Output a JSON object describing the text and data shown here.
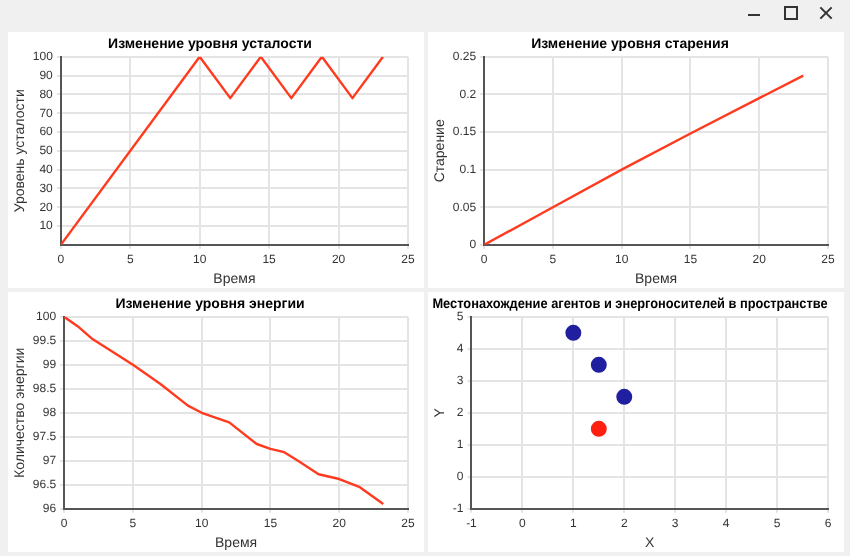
{
  "chart_data": [
    {
      "type": "line",
      "title": "Изменение уровня усталости",
      "xlabel": "Время",
      "ylabel": "Уровень усталости",
      "xlim": [
        0,
        25
      ],
      "xticks": [
        0,
        5,
        10,
        15,
        20,
        25
      ],
      "ylim": [
        0,
        100
      ],
      "yticks": [
        10,
        20,
        30,
        40,
        50,
        60,
        70,
        80,
        90,
        100
      ],
      "grid": true,
      "legend": false,
      "marker": "none",
      "series": [
        {
          "color": "#ff3b1f",
          "x": [
            0,
            10,
            12.2,
            14.4,
            16.6,
            18.8,
            21,
            23.2
          ],
          "values": [
            0,
            100,
            78,
            100,
            78,
            100,
            78,
            100
          ]
        }
      ]
    },
    {
      "type": "line",
      "title": "Изменение уровня старения",
      "xlabel": "Время",
      "ylabel": "Старение",
      "xlim": [
        0,
        25
      ],
      "xticks": [
        0,
        5,
        10,
        15,
        20,
        25
      ],
      "ylim": [
        0,
        0.25
      ],
      "yticks": [
        0,
        0.05,
        0.1,
        0.15,
        0.2,
        0.25
      ],
      "grid": true,
      "legend": false,
      "marker": "none",
      "series": [
        {
          "color": "#ff3b1f",
          "x": [
            0,
            5,
            10,
            15,
            20,
            23.2
          ],
          "values": [
            0,
            0.05,
            0.1,
            0.148,
            0.195,
            0.225
          ]
        }
      ]
    },
    {
      "type": "line",
      "title": "Изменение уровня энергии",
      "xlabel": "Время",
      "ylabel": "Количество энергии",
      "xlim": [
        0,
        25
      ],
      "xticks": [
        0,
        5,
        10,
        15,
        20,
        25
      ],
      "ylim": [
        96,
        100
      ],
      "yticks": [
        96,
        96.5,
        97,
        97.5,
        98,
        98.5,
        99,
        99.5,
        100
      ],
      "grid": true,
      "legend": false,
      "marker": "none",
      "series": [
        {
          "color": "#ff3b1f",
          "x": [
            0,
            1,
            2,
            5,
            7,
            9,
            10,
            12,
            14,
            15,
            16,
            17,
            18.5,
            20,
            21.5,
            23.2
          ],
          "values": [
            100,
            99.8,
            99.55,
            99.0,
            98.6,
            98.15,
            98.0,
            97.8,
            97.35,
            97.25,
            97.18,
            97.0,
            96.72,
            96.62,
            96.45,
            96.1
          ]
        }
      ]
    },
    {
      "type": "scatter",
      "title": "Местонахождение агентов и энергоносителей в пространстве",
      "xlabel": "X",
      "ylabel": "Y",
      "xlim": [
        -1,
        6
      ],
      "xticks": [
        -1,
        0,
        1,
        2,
        3,
        4,
        5,
        6
      ],
      "ylim": [
        -1,
        5
      ],
      "yticks": [
        -1,
        0,
        1,
        2,
        3,
        4,
        5
      ],
      "grid": true,
      "legend": false,
      "marker": "circle",
      "series": [
        {
          "color": "#1f1f9f",
          "x": [
            1,
            1.5,
            2
          ],
          "values": [
            4.5,
            3.5,
            2.5
          ]
        },
        {
          "color": "#ff2010",
          "x": [
            1.5
          ],
          "values": [
            1.5
          ]
        }
      ]
    }
  ]
}
